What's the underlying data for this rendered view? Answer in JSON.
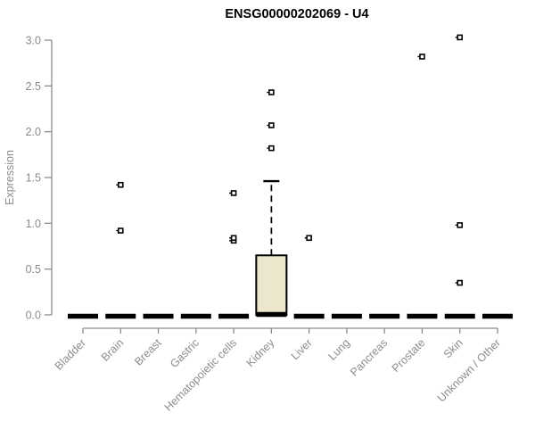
{
  "chart_data": {
    "type": "boxplot",
    "title": "ENSG00000202069 - U4",
    "ylabel": "Expression",
    "xlabel": "",
    "ylim": [
      0,
      3
    ],
    "yticks": [
      0,
      0.5,
      1,
      1.5,
      2,
      2.5,
      3
    ],
    "grid": false,
    "legend_position": "none",
    "categories": [
      "Bladder",
      "Brain",
      "Breast",
      "Gastric",
      "Hematopoietic cells",
      "Kidney",
      "Liver",
      "Lung",
      "Pancreas",
      "Prostate",
      "Skin",
      "Unknown / Other"
    ],
    "series": [
      {
        "category": "Bladder",
        "whisker_low": 0,
        "q1": 0,
        "median": 0,
        "q3": 0,
        "whisker_high": 0,
        "outliers": []
      },
      {
        "category": "Brain",
        "whisker_low": 0,
        "q1": 0,
        "median": 0,
        "q3": 0,
        "whisker_high": 0,
        "outliers": [
          0.92,
          1.42
        ]
      },
      {
        "category": "Breast",
        "whisker_low": 0,
        "q1": 0,
        "median": 0,
        "q3": 0,
        "whisker_high": 0,
        "outliers": []
      },
      {
        "category": "Gastric",
        "whisker_low": 0,
        "q1": 0,
        "median": 0,
        "q3": 0,
        "whisker_high": 0,
        "outliers": []
      },
      {
        "category": "Hematopoietic cells",
        "whisker_low": 0,
        "q1": 0,
        "median": 0,
        "q3": 0,
        "whisker_high": 0,
        "outliers": [
          0.81,
          0.84,
          1.33
        ]
      },
      {
        "category": "Kidney",
        "whisker_low": 0,
        "q1": 0,
        "median": 0.02,
        "q3": 0.65,
        "whisker_high": 1.46,
        "outliers": [
          1.82,
          2.07,
          2.43
        ]
      },
      {
        "category": "Liver",
        "whisker_low": 0,
        "q1": 0,
        "median": 0,
        "q3": 0,
        "whisker_high": 0,
        "outliers": [
          0.84
        ]
      },
      {
        "category": "Lung",
        "whisker_low": 0,
        "q1": 0,
        "median": 0,
        "q3": 0,
        "whisker_high": 0,
        "outliers": []
      },
      {
        "category": "Pancreas",
        "whisker_low": 0,
        "q1": 0,
        "median": 0,
        "q3": 0,
        "whisker_high": 0,
        "outliers": []
      },
      {
        "category": "Prostate",
        "whisker_low": 0,
        "q1": 0,
        "median": 0,
        "q3": 0,
        "whisker_high": 0,
        "outliers": [
          2.82
        ]
      },
      {
        "category": "Skin",
        "whisker_low": 0,
        "q1": 0,
        "median": 0,
        "q3": 0,
        "whisker_high": 0,
        "outliers": [
          0.35,
          0.98,
          3.03
        ]
      },
      {
        "category": "Unknown / Other",
        "whisker_low": 0,
        "q1": 0,
        "median": 0,
        "q3": 0,
        "whisker_high": 0,
        "outliers": []
      }
    ],
    "colors": {
      "box_fill": "#ece7cc",
      "box_stroke": "#000000",
      "median": "#000000",
      "outlier": "#000000",
      "axis": "#8c8c8c",
      "tick_label": "#8c8c8c",
      "title": "#000000",
      "background": "#ffffff"
    }
  }
}
